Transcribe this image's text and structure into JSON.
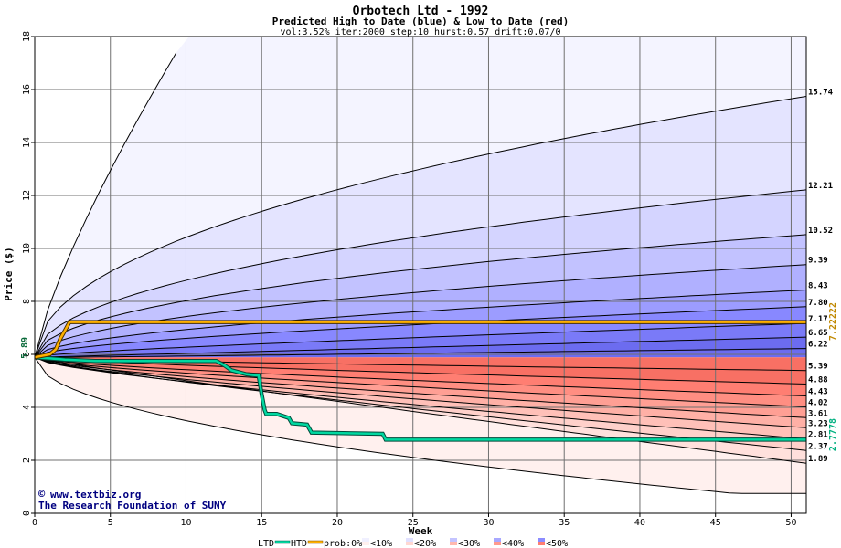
{
  "chart_data": {
    "type": "area",
    "title": "Orbotech Ltd - 1992",
    "subtitle": "Predicted High to Date (blue) &  Low to Date (red)",
    "params": "vol:3.52% iter:2000 step:10 hurst:0.57 drift:0.07/0",
    "xlabel": "Week",
    "ylabel": "Price ($)",
    "xlim": [
      0,
      51
    ],
    "ylim": [
      0,
      18
    ],
    "x_ticks": [
      0,
      5,
      10,
      15,
      20,
      25,
      30,
      35,
      40,
      45,
      50
    ],
    "y_ticks": [
      0,
      2,
      4,
      6,
      8,
      10,
      12,
      14,
      16,
      18
    ],
    "start_price": 5.89,
    "start_label": "5.89",
    "high_percentiles": [
      {
        "end": 15.74,
        "label": "15.74",
        "mid": 10.5
      },
      {
        "end": 12.21,
        "label": "12.21",
        "mid": 8.85
      },
      {
        "end": 10.52,
        "label": "10.52",
        "mid": 8.05
      },
      {
        "end": 9.39,
        "label": "9.39",
        "mid": 7.6
      },
      {
        "end": 8.43,
        "label": "8.43",
        "mid": 7.2
      },
      {
        "end": 7.8,
        "label": "7.80",
        "mid": 6.95
      },
      {
        "end": 7.17,
        "label": "7.17",
        "mid": 6.7
      },
      {
        "end": 6.65,
        "label": "6.65",
        "mid": 6.45
      },
      {
        "end": 6.22,
        "label": "6.22",
        "mid": 6.15
      }
    ],
    "low_percentiles": [
      {
        "end": 5.39,
        "label": "5.39",
        "mid": 5.58
      },
      {
        "end": 4.88,
        "label": "4.88",
        "mid": 5.25
      },
      {
        "end": 4.43,
        "label": "4.43",
        "mid": 5.0
      },
      {
        "end": 4.02,
        "label": "4.02",
        "mid": 4.75
      },
      {
        "end": 3.61,
        "label": "3.61",
        "mid": 4.5
      },
      {
        "end": 3.23,
        "label": "3.23",
        "mid": 4.25
      },
      {
        "end": 2.81,
        "label": "2.81",
        "mid": 3.95
      },
      {
        "end": 2.37,
        "label": "2.37",
        "mid": 3.55
      },
      {
        "end": 1.89,
        "label": "1.89",
        "mid": 3.05
      }
    ],
    "extreme_high": {
      "x": 10,
      "y": 18
    },
    "extreme_low": {
      "x": 51,
      "y": 0.75
    },
    "htd_series": {
      "name": "HTD",
      "final_label": "7.22222",
      "color": "#ffb000",
      "x": [
        0,
        1,
        1.4,
        1.7,
        2,
        2.3,
        3,
        51
      ],
      "y": [
        5.89,
        6.0,
        6.2,
        6.6,
        6.9,
        7.22,
        7.22,
        7.22
      ]
    },
    "ltd_series": {
      "name": "LTD",
      "final_label": "2.7778",
      "color": "#00d8a0",
      "x": [
        0,
        1,
        2,
        4,
        12,
        12.5,
        13,
        14,
        14.8,
        15,
        15.2,
        15.3,
        16,
        16.8,
        17,
        18,
        18.3,
        23,
        23.2,
        51
      ],
      "y": [
        5.89,
        5.85,
        5.8,
        5.75,
        5.75,
        5.6,
        5.4,
        5.25,
        5.2,
        4.5,
        3.9,
        3.75,
        3.75,
        3.6,
        3.4,
        3.35,
        3.05,
        3.0,
        2.78,
        2.78
      ]
    },
    "band_colors_high": [
      "#ffffff",
      "#f4f4ff",
      "#e4e4ff",
      "#d4d4ff",
      "#c2c2ff",
      "#b0b0ff",
      "#9c9cff",
      "#8888ff",
      "#7a7af8",
      "#6c6cf0"
    ],
    "band_colors_low": [
      "#ffffff",
      "#fff0ee",
      "#ffe0dc",
      "#ffd0ca",
      "#ffc0b8",
      "#ffb0a6",
      "#ff9f94",
      "#ff8e82",
      "#ff7e72",
      "#f87064"
    ],
    "watermark_1": "www.textbiz.org",
    "watermark_2": "The Research Foundation of SUNY",
    "legend": {
      "ltd": "LTD",
      "htd": "HTD",
      "prob": "prob:0%",
      "items": [
        "<10%",
        "<20%",
        "<30%",
        "<40%",
        "<50%"
      ],
      "item_colors": [
        "#f0f0ff",
        "#fff0ee",
        "#e0e0ff",
        "#ffd8d2",
        "#c4c4ff",
        "#ffb8ae",
        "#a8a8ff",
        "#ff9a8e",
        "#8c8cff",
        "#ff7e72"
      ]
    }
  }
}
